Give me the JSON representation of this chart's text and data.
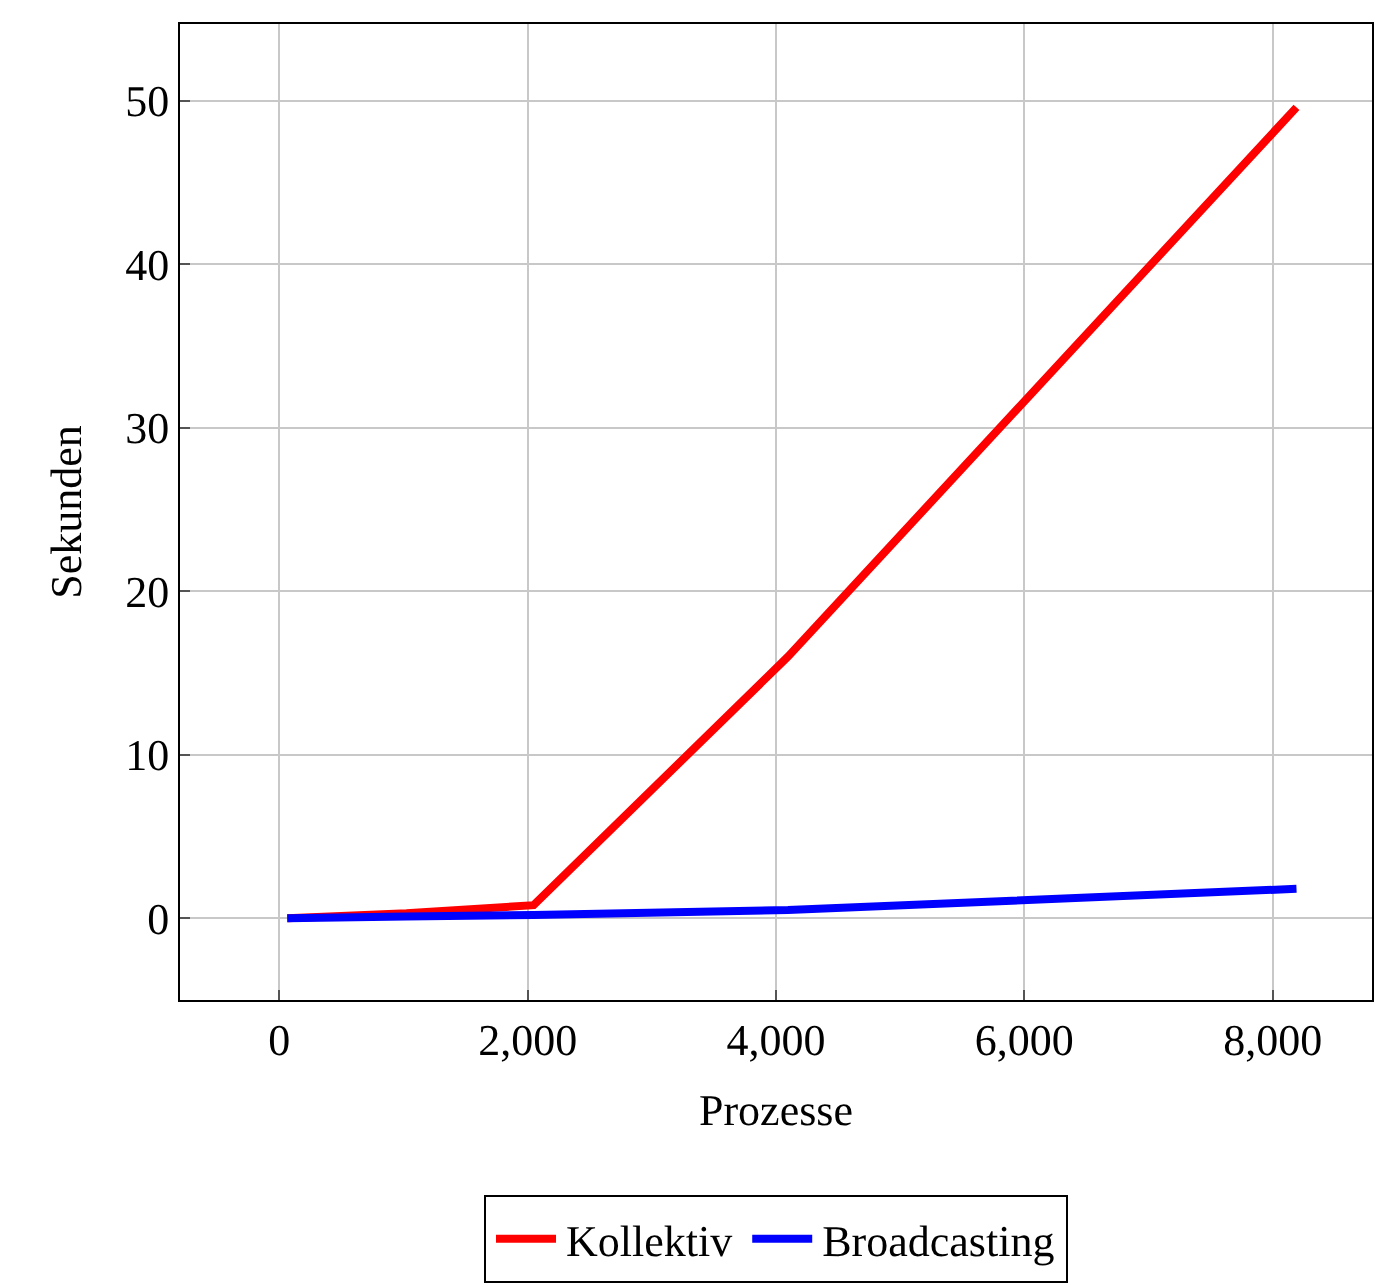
{
  "chart_data": {
    "type": "line",
    "xlabel": "Prozesse",
    "ylabel": "Sekunden",
    "x": [
      64,
      1024,
      2048,
      4096,
      8192
    ],
    "series": [
      {
        "name": "Kollektiv",
        "color": "#ff0000",
        "values": [
          0.0,
          0.3,
          0.8,
          16,
          49.6
        ]
      },
      {
        "name": "Broadcasting",
        "color": "#0000ff",
        "values": [
          0.0,
          0.1,
          0.2,
          0.5,
          1.8
        ]
      }
    ],
    "xlim": [
      -800,
      8800
    ],
    "ylim": [
      -5,
      54.7
    ],
    "xticks": [
      {
        "value": 0,
        "label": "0"
      },
      {
        "value": 2000,
        "label": "2,000"
      },
      {
        "value": 4000,
        "label": "4,000"
      },
      {
        "value": 6000,
        "label": "6,000"
      },
      {
        "value": 8000,
        "label": "8,000"
      }
    ],
    "yticks": [
      0,
      10,
      20,
      30,
      40,
      50
    ],
    "grid": true,
    "legend": "bottom",
    "marker": "none",
    "line_style": "solid"
  }
}
